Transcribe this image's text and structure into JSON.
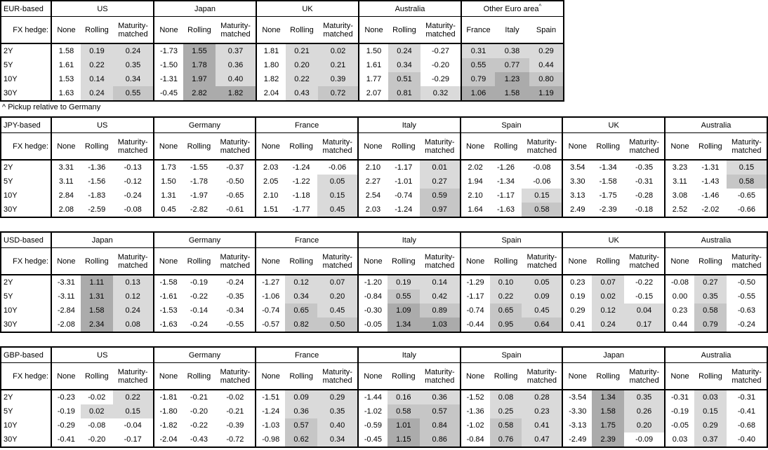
{
  "fx_hedge_label": "FX hedge:",
  "row_labels": [
    "2Y",
    "5Y",
    "10Y",
    "30Y"
  ],
  "footnote": "^ Pickup relative to Germany",
  "shading": {
    "thresholds": [
      0,
      0.5,
      1.0
    ],
    "colors": [
      "#dadada",
      "#c6c6c6",
      "#ababab"
    ]
  },
  "tables": [
    {
      "label": "EUR-based",
      "groups": [
        {
          "name": "US",
          "cols": [
            "None",
            "Rolling",
            "Maturity-matched"
          ],
          "shaded_cols": [
            1,
            2
          ],
          "rows": [
            [
              "1.58",
              "0.19",
              "0.24"
            ],
            [
              "1.61",
              "0.22",
              "0.35"
            ],
            [
              "1.53",
              "0.14",
              "0.34"
            ],
            [
              "1.63",
              "0.24",
              "0.55"
            ]
          ]
        },
        {
          "name": "Japan",
          "cols": [
            "None",
            "Rolling",
            "Maturity-matched"
          ],
          "shaded_cols": [
            1,
            2
          ],
          "rows": [
            [
              "-1.73",
              "1.55",
              "0.37"
            ],
            [
              "-1.50",
              "1.78",
              "0.36"
            ],
            [
              "-1.31",
              "1.97",
              "0.40"
            ],
            [
              "-0.45",
              "2.82",
              "1.82"
            ]
          ]
        },
        {
          "name": "UK",
          "cols": [
            "None",
            "Rolling",
            "Maturity-matched"
          ],
          "shaded_cols": [
            1,
            2
          ],
          "rows": [
            [
              "1.81",
              "0.21",
              "0.02"
            ],
            [
              "1.80",
              "0.20",
              "0.21"
            ],
            [
              "1.82",
              "0.22",
              "0.39"
            ],
            [
              "2.04",
              "0.43",
              "0.72"
            ]
          ]
        },
        {
          "name": "Australia",
          "cols": [
            "None",
            "Rolling",
            "Maturity-matched"
          ],
          "shaded_cols": [
            1,
            2
          ],
          "rows": [
            [
              "1.50",
              "0.24",
              "-0.27"
            ],
            [
              "1.61",
              "0.34",
              "-0.20"
            ],
            [
              "1.77",
              "0.51",
              "-0.29"
            ],
            [
              "2.07",
              "0.81",
              "0.32"
            ]
          ]
        },
        {
          "name": "Other Euro area",
          "sup": "^",
          "cols": [
            "France",
            "Italy",
            "Spain"
          ],
          "shaded_cols": [
            0,
            1,
            2
          ],
          "rows": [
            [
              "0.31",
              "0.38",
              "0.29"
            ],
            [
              "0.55",
              "0.77",
              "0.44"
            ],
            [
              "0.79",
              "1.23",
              "0.80"
            ],
            [
              "1.06",
              "1.58",
              "1.19"
            ]
          ]
        }
      ]
    },
    {
      "label": "JPY-based",
      "groups": [
        {
          "name": "US",
          "cols": [
            "None",
            "Rolling",
            "Maturity-matched"
          ],
          "shaded_cols": [
            1,
            2
          ],
          "rows": [
            [
              "3.31",
              "-1.36",
              "-0.13"
            ],
            [
              "3.11",
              "-1.56",
              "-0.12"
            ],
            [
              "2.84",
              "-1.83",
              "-0.24"
            ],
            [
              "2.08",
              "-2.59",
              "-0.08"
            ]
          ]
        },
        {
          "name": "Germany",
          "cols": [
            "None",
            "Rolling",
            "Maturity-matched"
          ],
          "shaded_cols": [
            1,
            2
          ],
          "rows": [
            [
              "1.73",
              "-1.55",
              "-0.37"
            ],
            [
              "1.50",
              "-1.78",
              "-0.50"
            ],
            [
              "1.31",
              "-1.97",
              "-0.65"
            ],
            [
              "0.45",
              "-2.82",
              "-0.61"
            ]
          ]
        },
        {
          "name": "France",
          "cols": [
            "None",
            "Rolling",
            "Maturity-matched"
          ],
          "shaded_cols": [
            1,
            2
          ],
          "rows": [
            [
              "2.03",
              "-1.24",
              "-0.06"
            ],
            [
              "2.05",
              "-1.22",
              "0.05"
            ],
            [
              "2.10",
              "-1.18",
              "0.15"
            ],
            [
              "1.51",
              "-1.77",
              "0.45"
            ]
          ]
        },
        {
          "name": "Italy",
          "cols": [
            "None",
            "Rolling",
            "Maturity-matched"
          ],
          "shaded_cols": [
            1,
            2
          ],
          "rows": [
            [
              "2.10",
              "-1.17",
              "0.01"
            ],
            [
              "2.27",
              "-1.01",
              "0.27"
            ],
            [
              "2.54",
              "-0.74",
              "0.59"
            ],
            [
              "2.03",
              "-1.24",
              "0.97"
            ]
          ]
        },
        {
          "name": "Spain",
          "cols": [
            "None",
            "Rolling",
            "Maturity-matched"
          ],
          "shaded_cols": [
            1,
            2
          ],
          "rows": [
            [
              "2.02",
              "-1.26",
              "-0.08"
            ],
            [
              "1.94",
              "-1.34",
              "-0.06"
            ],
            [
              "2.10",
              "-1.17",
              "0.15"
            ],
            [
              "1.64",
              "-1.63",
              "0.58"
            ]
          ]
        },
        {
          "name": "UK",
          "cols": [
            "None",
            "Rolling",
            "Maturity-matched"
          ],
          "shaded_cols": [
            1,
            2
          ],
          "rows": [
            [
              "3.54",
              "-1.34",
              "-0.35"
            ],
            [
              "3.30",
              "-1.58",
              "-0.31"
            ],
            [
              "3.13",
              "-1.75",
              "-0.28"
            ],
            [
              "2.49",
              "-2.39",
              "-0.18"
            ]
          ]
        },
        {
          "name": "Australia",
          "cols": [
            "None",
            "Rolling",
            "Maturity-matched"
          ],
          "shaded_cols": [
            1,
            2
          ],
          "rows": [
            [
              "3.23",
              "-1.31",
              "0.15"
            ],
            [
              "3.11",
              "-1.43",
              "0.58"
            ],
            [
              "3.08",
              "-1.46",
              "-0.65"
            ],
            [
              "2.52",
              "-2.02",
              "-0.66"
            ]
          ]
        }
      ]
    },
    {
      "label": "USD-based",
      "groups": [
        {
          "name": "Japan",
          "cols": [
            "None",
            "Rolling",
            "Maturity-matched"
          ],
          "shaded_cols": [
            1,
            2
          ],
          "rows": [
            [
              "-3.31",
              "1.11",
              "0.13"
            ],
            [
              "-3.11",
              "1.31",
              "0.12"
            ],
            [
              "-2.84",
              "1.58",
              "0.24"
            ],
            [
              "-2.08",
              "2.34",
              "0.08"
            ]
          ]
        },
        {
          "name": "Germany",
          "cols": [
            "None",
            "Rolling",
            "Maturity-matched"
          ],
          "shaded_cols": [
            1,
            2
          ],
          "rows": [
            [
              "-1.58",
              "-0.19",
              "-0.24"
            ],
            [
              "-1.61",
              "-0.22",
              "-0.35"
            ],
            [
              "-1.53",
              "-0.14",
              "-0.34"
            ],
            [
              "-1.63",
              "-0.24",
              "-0.55"
            ]
          ]
        },
        {
          "name": "France",
          "cols": [
            "None",
            "Rolling",
            "Maturity-matched"
          ],
          "shaded_cols": [
            1,
            2
          ],
          "rows": [
            [
              "-1.27",
              "0.12",
              "0.07"
            ],
            [
              "-1.06",
              "0.34",
              "0.20"
            ],
            [
              "-0.74",
              "0.65",
              "0.45"
            ],
            [
              "-0.57",
              "0.82",
              "0.50"
            ]
          ]
        },
        {
          "name": "Italy",
          "cols": [
            "None",
            "Rolling",
            "Maturity-matched"
          ],
          "shaded_cols": [
            1,
            2
          ],
          "rows": [
            [
              "-1.20",
              "0.19",
              "0.14"
            ],
            [
              "-0.84",
              "0.55",
              "0.42"
            ],
            [
              "-0.30",
              "1.09",
              "0.89"
            ],
            [
              "-0.05",
              "1.34",
              "1.03"
            ]
          ]
        },
        {
          "name": "Spain",
          "cols": [
            "None",
            "Rolling",
            "Maturity-matched"
          ],
          "shaded_cols": [
            1,
            2
          ],
          "rows": [
            [
              "-1.29",
              "0.10",
              "0.05"
            ],
            [
              "-1.17",
              "0.22",
              "0.09"
            ],
            [
              "-0.74",
              "0.65",
              "0.45"
            ],
            [
              "-0.44",
              "0.95",
              "0.64"
            ]
          ]
        },
        {
          "name": "UK",
          "cols": [
            "None",
            "Rolling",
            "Maturity-matched"
          ],
          "shaded_cols": [
            1,
            2
          ],
          "rows": [
            [
              "0.23",
              "0.07",
              "-0.22"
            ],
            [
              "0.19",
              "0.02",
              "-0.15"
            ],
            [
              "0.29",
              "0.12",
              "0.04"
            ],
            [
              "0.41",
              "0.24",
              "0.17"
            ]
          ]
        },
        {
          "name": "Australia",
          "cols": [
            "None",
            "Rolling",
            "Maturity-matched"
          ],
          "shaded_cols": [
            1,
            2
          ],
          "rows": [
            [
              "-0.08",
              "0.27",
              "-0.50"
            ],
            [
              "0.00",
              "0.35",
              "-0.55"
            ],
            [
              "0.23",
              "0.58",
              "-0.63"
            ],
            [
              "0.44",
              "0.79",
              "-0.24"
            ]
          ]
        }
      ]
    },
    {
      "label": "GBP-based",
      "groups": [
        {
          "name": "US",
          "cols": [
            "None",
            "Rolling",
            "Maturity-matched"
          ],
          "shaded_cols": [
            1,
            2
          ],
          "rows": [
            [
              "-0.23",
              "-0.02",
              "0.22"
            ],
            [
              "-0.19",
              "0.02",
              "0.15"
            ],
            [
              "-0.29",
              "-0.08",
              "-0.04"
            ],
            [
              "-0.41",
              "-0.20",
              "-0.17"
            ]
          ]
        },
        {
          "name": "Germany",
          "cols": [
            "None",
            "Rolling",
            "Maturity-matched"
          ],
          "shaded_cols": [
            1,
            2
          ],
          "rows": [
            [
              "-1.81",
              "-0.21",
              "-0.02"
            ],
            [
              "-1.80",
              "-0.20",
              "-0.21"
            ],
            [
              "-1.82",
              "-0.22",
              "-0.39"
            ],
            [
              "-2.04",
              "-0.43",
              "-0.72"
            ]
          ]
        },
        {
          "name": "France",
          "cols": [
            "None",
            "Rolling",
            "Maturity-matched"
          ],
          "shaded_cols": [
            1,
            2
          ],
          "rows": [
            [
              "-1.51",
              "0.09",
              "0.29"
            ],
            [
              "-1.24",
              "0.36",
              "0.35"
            ],
            [
              "-1.03",
              "0.57",
              "0.40"
            ],
            [
              "-0.98",
              "0.62",
              "0.34"
            ]
          ]
        },
        {
          "name": "Italy",
          "cols": [
            "None",
            "Rolling",
            "Maturity-matched"
          ],
          "shaded_cols": [
            1,
            2
          ],
          "rows": [
            [
              "-1.44",
              "0.16",
              "0.36"
            ],
            [
              "-1.02",
              "0.58",
              "0.57"
            ],
            [
              "-0.59",
              "1.01",
              "0.84"
            ],
            [
              "-0.45",
              "1.15",
              "0.86"
            ]
          ]
        },
        {
          "name": "Spain",
          "cols": [
            "None",
            "Rolling",
            "Maturity-matched"
          ],
          "shaded_cols": [
            1,
            2
          ],
          "rows": [
            [
              "-1.52",
              "0.08",
              "0.28"
            ],
            [
              "-1.36",
              "0.25",
              "0.23"
            ],
            [
              "-1.02",
              "0.58",
              "0.41"
            ],
            [
              "-0.84",
              "0.76",
              "0.47"
            ]
          ]
        },
        {
          "name": "Japan",
          "cols": [
            "None",
            "Rolling",
            "Maturity-matched"
          ],
          "shaded_cols": [
            1,
            2
          ],
          "rows": [
            [
              "-3.54",
              "1.34",
              "0.35"
            ],
            [
              "-3.30",
              "1.58",
              "0.26"
            ],
            [
              "-3.13",
              "1.75",
              "0.20"
            ],
            [
              "-2.49",
              "2.39",
              "-0.09"
            ]
          ]
        },
        {
          "name": "Australia",
          "cols": [
            "None",
            "Rolling",
            "Maturity-matched"
          ],
          "shaded_cols": [
            1,
            2
          ],
          "rows": [
            [
              "-0.31",
              "0.03",
              "-0.31"
            ],
            [
              "-0.19",
              "0.15",
              "-0.41"
            ],
            [
              "-0.05",
              "0.29",
              "-0.68"
            ],
            [
              "0.03",
              "0.37",
              "-0.40"
            ]
          ]
        }
      ]
    }
  ]
}
